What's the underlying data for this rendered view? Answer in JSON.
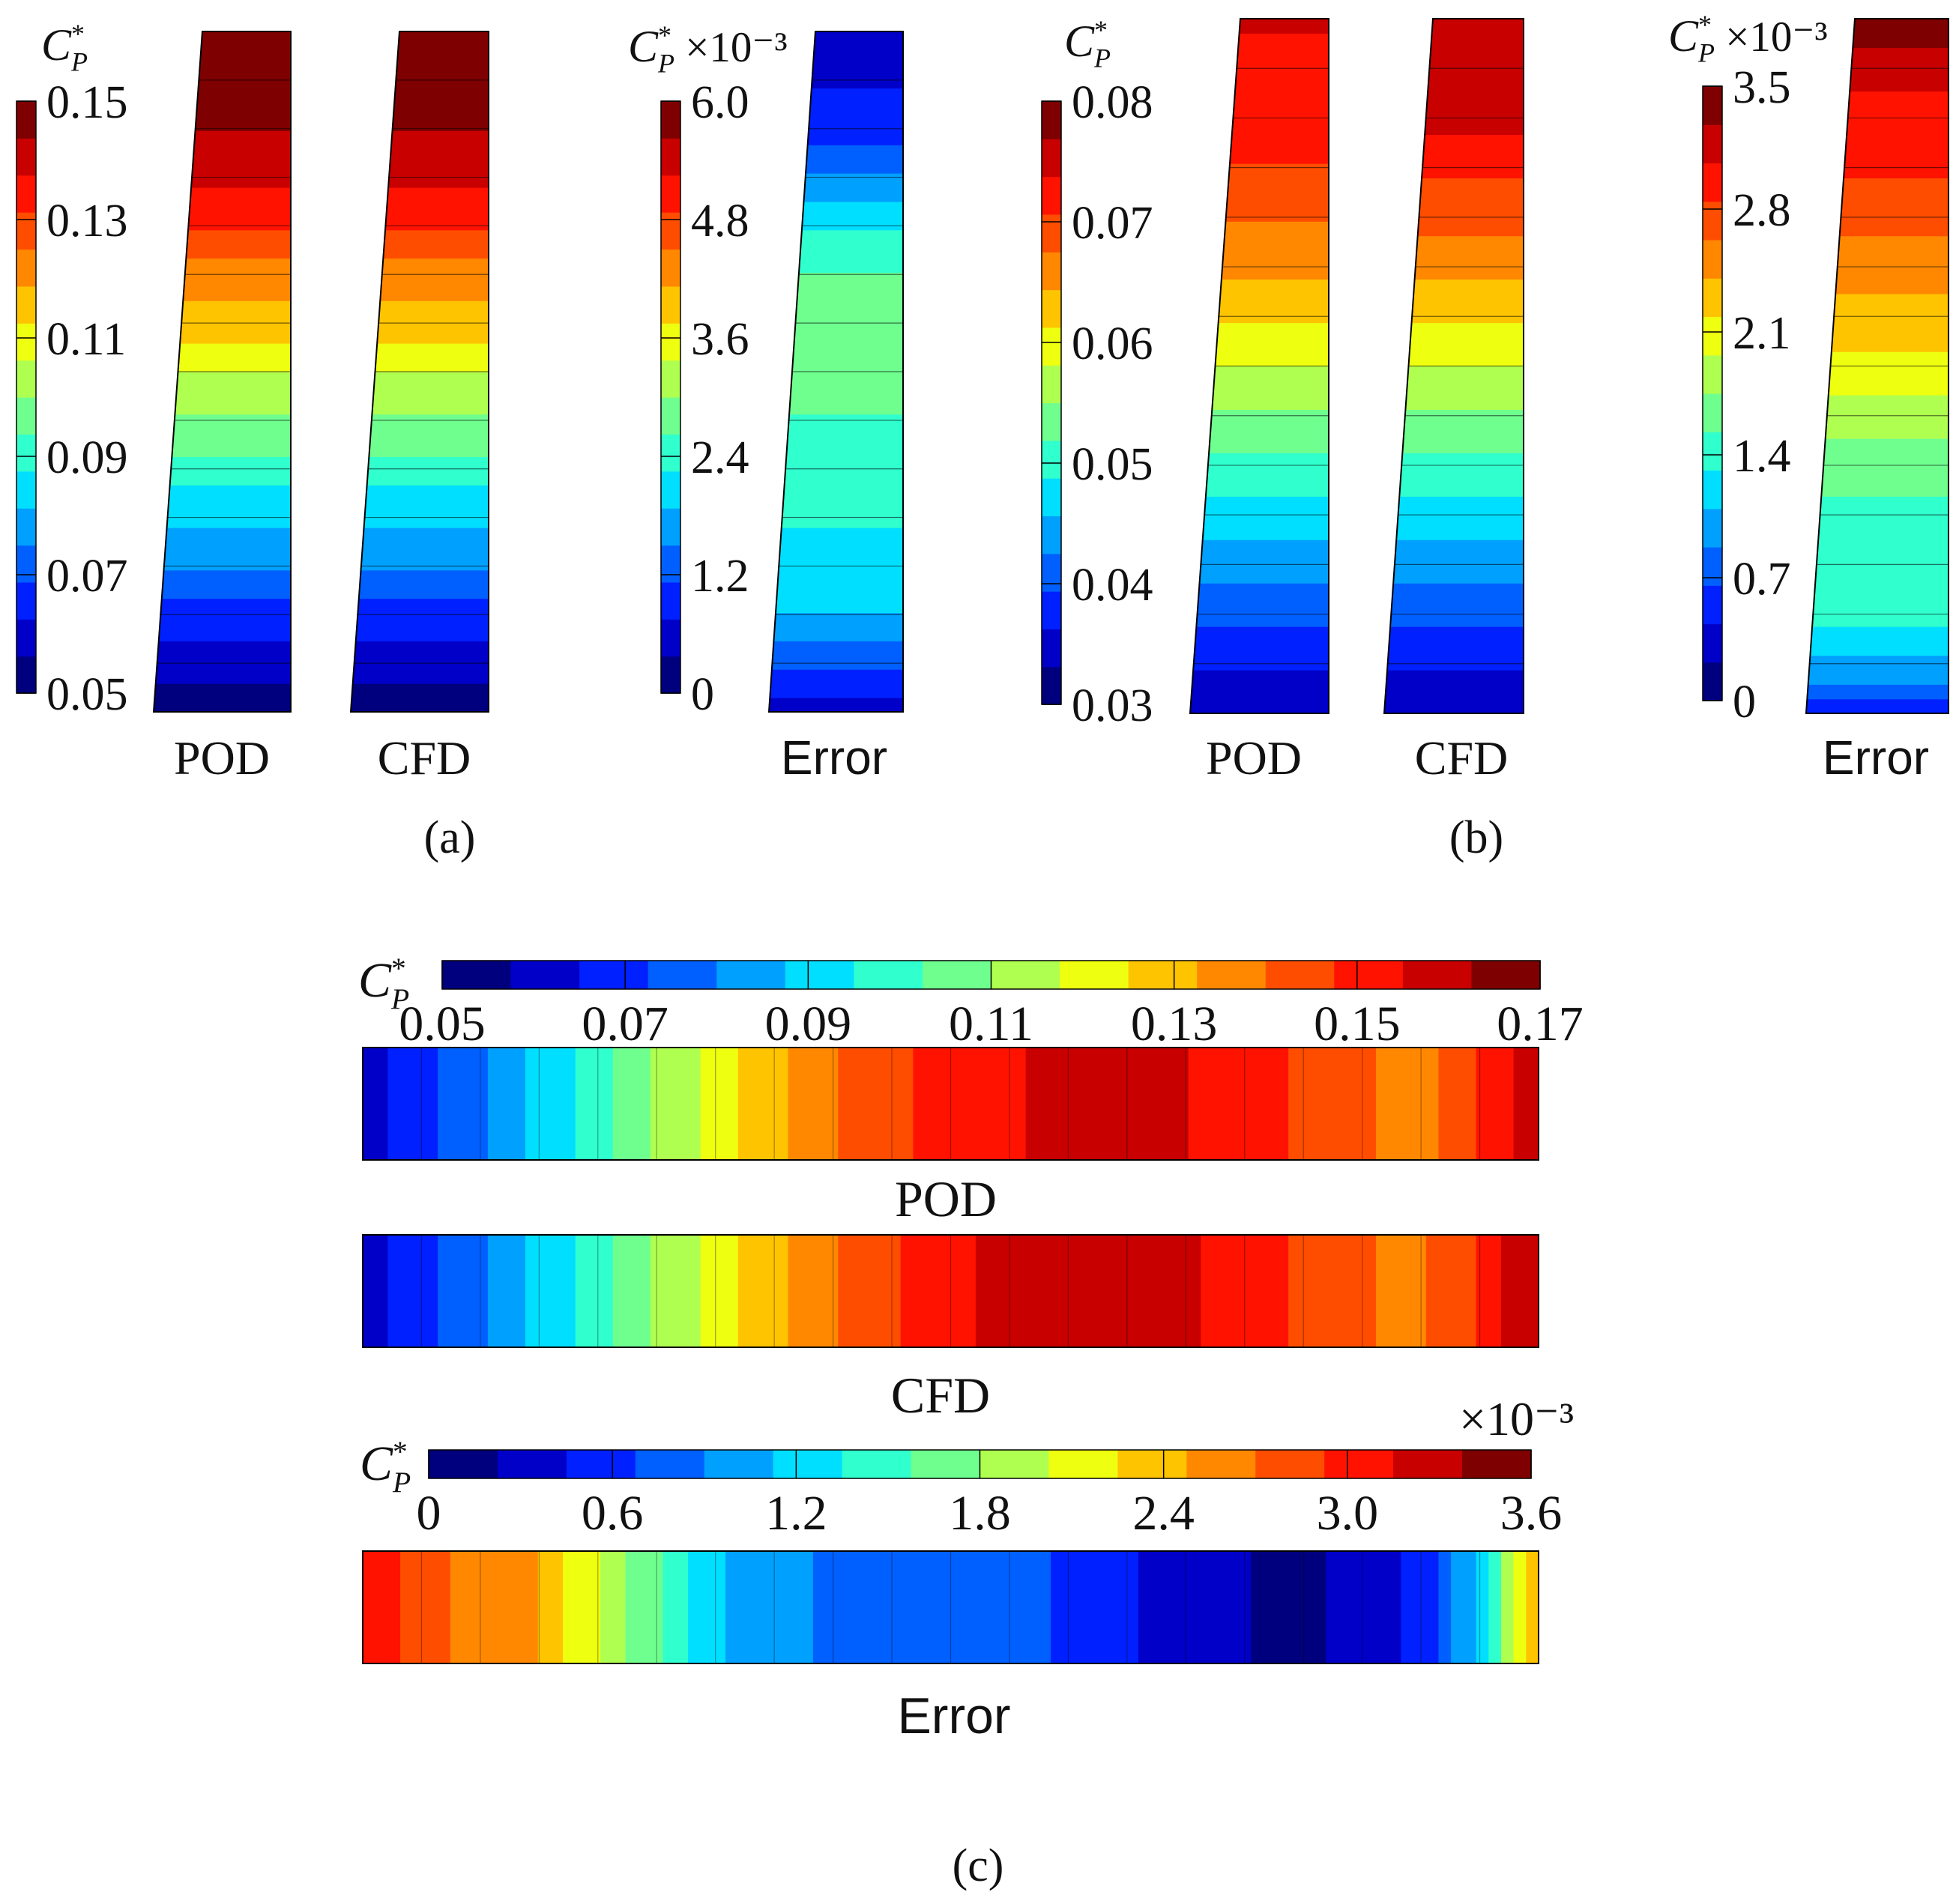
{
  "figure": {
    "panel_a_label": "(a)",
    "panel_b_label": "(b)",
    "panel_c_label": "(c)"
  },
  "colormap": [
    "#00007f",
    "#0000c8",
    "#0020ff",
    "#0060ff",
    "#00a0ff",
    "#00dfff",
    "#30ffce",
    "#6fff8f",
    "#afff50",
    "#efff10",
    "#ffc400",
    "#ff8800",
    "#ff4d00",
    "#ff1200",
    "#c80000",
    "#7f0000"
  ],
  "chart_data": [
    {
      "id": "a",
      "type": "heatmap",
      "title": "(a)",
      "colorbars": [
        {
          "symbol": "C",
          "superscript": "*",
          "subscript": "P",
          "multiplier": "",
          "range": [
            0.05,
            0.15
          ],
          "ticks": [
            "0.15",
            "0.13",
            "0.11",
            "0.09",
            "0.07",
            "0.05"
          ]
        },
        {
          "symbol": "C",
          "superscript": "*",
          "subscript": "P",
          "multiplier": "×10⁻³",
          "range": [
            0,
            6.0
          ],
          "ticks": [
            "6.0",
            "4.8",
            "3.6",
            "2.4",
            "1.2",
            "0"
          ]
        }
      ],
      "fields": [
        {
          "label": "POD",
          "root_to_tip": [
            0.052,
            0.058,
            0.065,
            0.072,
            0.079,
            0.086,
            0.093,
            0.1,
            0.107,
            0.114,
            0.121,
            0.128,
            0.135,
            0.141,
            0.146,
            0.15,
            0.154
          ]
        },
        {
          "label": "CFD",
          "root_to_tip": [
            0.052,
            0.058,
            0.065,
            0.072,
            0.079,
            0.086,
            0.093,
            0.1,
            0.107,
            0.114,
            0.121,
            0.128,
            0.135,
            0.141,
            0.146,
            0.15,
            0.154
          ]
        },
        {
          "label": "Error",
          "root_to_tip": [
            0.5,
            1.0,
            1.8,
            2.0,
            2.2,
            2.3,
            2.4,
            2.6,
            2.8,
            2.9,
            2.8,
            2.4,
            1.8,
            1.2,
            0.9,
            0.6,
            0.4
          ]
        }
      ]
    },
    {
      "id": "b",
      "type": "heatmap",
      "title": "(b)",
      "colorbars": [
        {
          "symbol": "C",
          "superscript": "*",
          "subscript": "P",
          "multiplier": "",
          "range": [
            0.03,
            0.08
          ],
          "ticks": [
            "0.08",
            "0.07",
            "0.06",
            "0.05",
            "0.04",
            "0.03"
          ]
        },
        {
          "symbol": "C",
          "superscript": "*",
          "subscript": "P",
          "multiplier": "×10⁻³",
          "range": [
            0,
            3.5
          ],
          "ticks": [
            "3.5",
            "2.8",
            "2.1",
            "1.4",
            "0.7",
            "0"
          ]
        }
      ],
      "fields": [
        {
          "label": "POD",
          "root_to_tip": [
            0.033,
            0.036,
            0.04,
            0.043,
            0.046,
            0.049,
            0.052,
            0.055,
            0.058,
            0.061,
            0.064,
            0.067,
            0.069,
            0.071,
            0.072,
            0.073,
            0.074
          ]
        },
        {
          "label": "CFD",
          "root_to_tip": [
            0.033,
            0.036,
            0.04,
            0.043,
            0.046,
            0.049,
            0.052,
            0.055,
            0.058,
            0.061,
            0.064,
            0.067,
            0.07,
            0.073,
            0.075,
            0.076,
            0.077
          ]
        },
        {
          "label": "Error",
          "root_to_tip": [
            0.4,
            1.0,
            1.3,
            1.4,
            1.4,
            1.5,
            1.7,
            1.9,
            2.1,
            2.3,
            2.5,
            2.6,
            2.8,
            2.9,
            3.0,
            3.2,
            3.4
          ]
        }
      ]
    },
    {
      "id": "c",
      "type": "heatmap",
      "title": "(c)",
      "colorbars": [
        {
          "symbol": "C",
          "superscript": "*",
          "subscript": "P",
          "multiplier": "",
          "range": [
            0.05,
            0.17
          ],
          "ticks": [
            "0.05",
            "0.07",
            "0.09",
            "0.11",
            "0.13",
            "0.15",
            "0.17"
          ]
        },
        {
          "symbol": "C",
          "superscript": "*",
          "subscript": "P",
          "multiplier": "×10⁻³",
          "range": [
            0,
            3.6
          ],
          "ticks": [
            "0",
            "0.6",
            "1.2",
            "1.8",
            "2.4",
            "3.0",
            "3.6"
          ]
        }
      ],
      "fields": [
        {
          "label": "POD",
          "left_to_right": [
            0.062,
            0.07,
            0.078,
            0.088,
            0.098,
            0.108,
            0.118,
            0.128,
            0.136,
            0.143,
            0.148,
            0.152,
            0.156,
            0.158,
            0.157,
            0.154,
            0.15,
            0.146,
            0.14,
            0.138,
            0.148,
            0.16
          ]
        },
        {
          "label": "CFD",
          "left_to_right": [
            0.062,
            0.07,
            0.078,
            0.088,
            0.098,
            0.108,
            0.118,
            0.128,
            0.137,
            0.144,
            0.15,
            0.155,
            0.158,
            0.159,
            0.158,
            0.155,
            0.15,
            0.145,
            0.14,
            0.139,
            0.15,
            0.162
          ]
        },
        {
          "label": "Error",
          "left_to_right": [
            3.1,
            2.8,
            2.6,
            2.5,
            2.1,
            1.7,
            1.3,
            1.0,
            0.9,
            0.8,
            0.8,
            0.7,
            0.7,
            0.6,
            0.4,
            0.3,
            0.2,
            0.2,
            0.3,
            0.6,
            1.2,
            2.6
          ]
        }
      ]
    }
  ]
}
